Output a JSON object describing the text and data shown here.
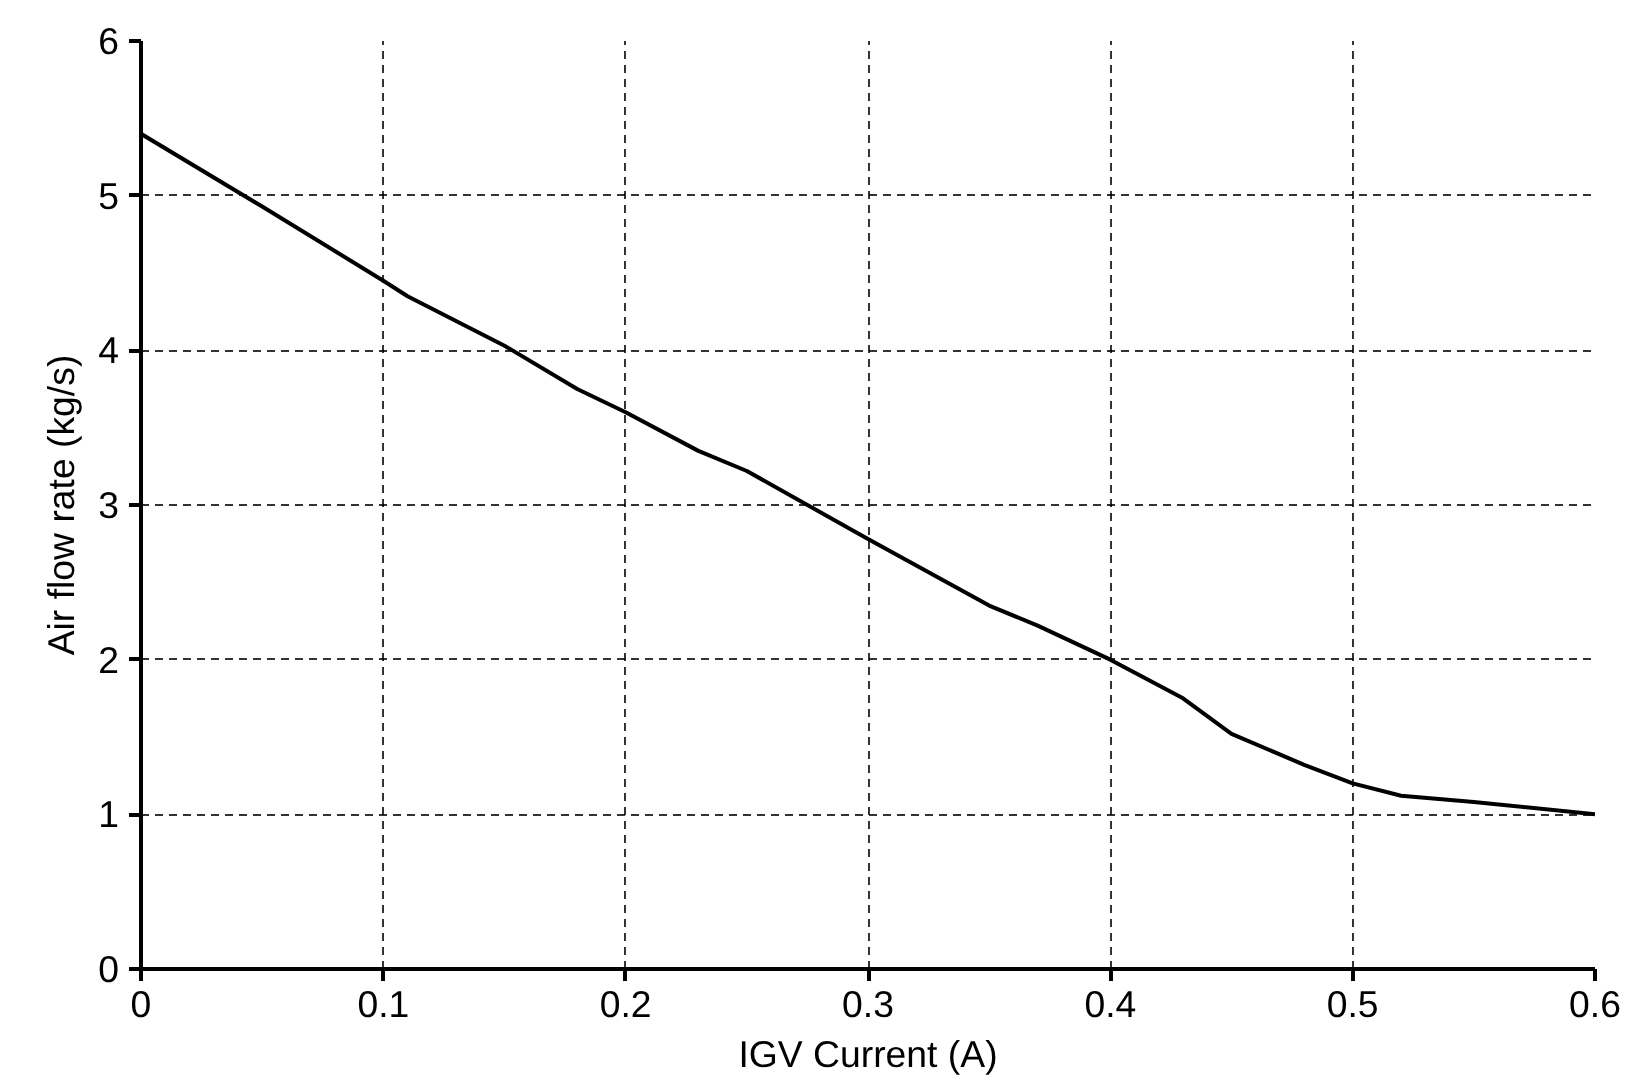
{
  "chart_data": {
    "type": "line",
    "xlabel": "IGV Current (A)",
    "ylabel": "Air flow rate (kg/s)",
    "x": [
      0,
      0.05,
      0.1,
      0.11,
      0.15,
      0.18,
      0.2,
      0.23,
      0.25,
      0.3,
      0.35,
      0.37,
      0.4,
      0.43,
      0.45,
      0.48,
      0.5,
      0.52,
      0.55,
      0.6
    ],
    "series": [
      {
        "color": "#000000",
        "values": [
          5.4,
          4.93,
          4.45,
          4.35,
          4.03,
          3.75,
          3.6,
          3.35,
          3.22,
          2.78,
          2.35,
          2.22,
          2.0,
          1.75,
          1.52,
          1.32,
          1.2,
          1.12,
          1.08,
          1.0
        ]
      }
    ],
    "xlim": [
      0,
      0.6
    ],
    "ylim": [
      0,
      6
    ],
    "xticks": [
      0,
      0.1,
      0.2,
      0.3,
      0.4,
      0.5,
      0.6
    ],
    "yticks": [
      0,
      1,
      2,
      3,
      4,
      5,
      6
    ],
    "grid": true,
    "line_style": "solid"
  }
}
